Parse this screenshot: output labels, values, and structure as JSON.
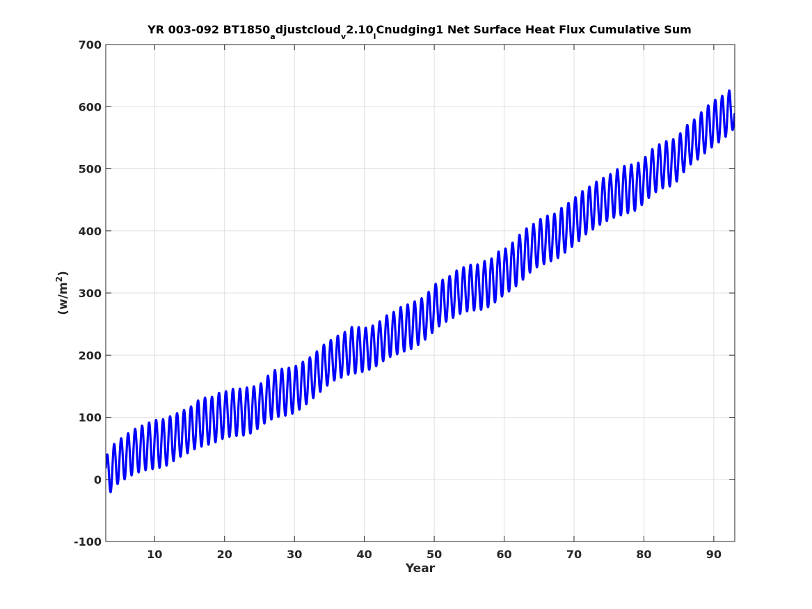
{
  "chart_data": {
    "type": "line",
    "title": {
      "prefix": "YR 003-092 BT1850",
      "sub1": "a",
      "mid1": "djustcloud",
      "sub2": "v",
      "mid2": "2.10",
      "sub3": "l",
      "suffix": "Cnudging1 Net Surface Heat Flux  Cumulative Sum"
    },
    "xlabel": "Year",
    "ylabel": {
      "text": "(w/m",
      "sup": "2",
      "close": ")"
    },
    "xlim": [
      3,
      93
    ],
    "ylim": [
      -100,
      700
    ],
    "xticks": [
      10,
      20,
      30,
      40,
      50,
      60,
      70,
      80,
      90
    ],
    "yticks": [
      -100,
      0,
      100,
      200,
      300,
      400,
      500,
      600,
      700
    ],
    "xtick_labels": [
      "10",
      "20",
      "30",
      "40",
      "50",
      "60",
      "70",
      "80",
      "90"
    ],
    "ytick_labels": [
      "-100",
      "0",
      "100",
      "200",
      "300",
      "400",
      "500",
      "600",
      "700"
    ],
    "grid": true,
    "line_color": "#0000ff",
    "series": [
      {
        "x_start": 3.0,
        "x_step": 0.08333,
        "cycle_period_years": 1.0,
        "envelope_max": [
          [
            3.2,
            40
          ],
          [
            4.2,
            57
          ],
          [
            5.3,
            67
          ],
          [
            6.3,
            75
          ],
          [
            7.3,
            82
          ],
          [
            8.3,
            87
          ],
          [
            9.3,
            92
          ],
          [
            10.3,
            96
          ],
          [
            11.3,
            97
          ],
          [
            12.3,
            102
          ],
          [
            13.3,
            107
          ],
          [
            14.3,
            112
          ],
          [
            15.3,
            118
          ],
          [
            16.3,
            128
          ],
          [
            17.3,
            132
          ],
          [
            18.3,
            133
          ],
          [
            19.3,
            140
          ],
          [
            20.3,
            142
          ],
          [
            21.3,
            146
          ],
          [
            22.3,
            146
          ],
          [
            23.3,
            148
          ],
          [
            24.3,
            150
          ],
          [
            25.3,
            155
          ],
          [
            26.3,
            168
          ],
          [
            27.3,
            177
          ],
          [
            28.3,
            178
          ],
          [
            29.3,
            180
          ],
          [
            30.3,
            183
          ],
          [
            31.3,
            190
          ],
          [
            32.3,
            197
          ],
          [
            33.3,
            207
          ],
          [
            34.3,
            218
          ],
          [
            35.3,
            225
          ],
          [
            36.3,
            232
          ],
          [
            37.3,
            238
          ],
          [
            38.3,
            246
          ],
          [
            39.3,
            245
          ],
          [
            40.3,
            244
          ],
          [
            41.3,
            248
          ],
          [
            42.3,
            255
          ],
          [
            43.3,
            265
          ],
          [
            44.3,
            270
          ],
          [
            45.3,
            278
          ],
          [
            46.3,
            282
          ],
          [
            47.3,
            287
          ],
          [
            48.3,
            292
          ],
          [
            49.3,
            303
          ],
          [
            50.3,
            316
          ],
          [
            51.3,
            322
          ],
          [
            52.3,
            328
          ],
          [
            53.3,
            337
          ],
          [
            54.3,
            342
          ],
          [
            55.3,
            346
          ],
          [
            56.3,
            346
          ],
          [
            57.3,
            352
          ],
          [
            58.3,
            356
          ],
          [
            59.3,
            368
          ],
          [
            60.3,
            372
          ],
          [
            61.3,
            382
          ],
          [
            62.3,
            395
          ],
          [
            63.3,
            405
          ],
          [
            64.3,
            412
          ],
          [
            65.3,
            420
          ],
          [
            66.3,
            425
          ],
          [
            67.3,
            428
          ],
          [
            68.3,
            438
          ],
          [
            69.3,
            446
          ],
          [
            70.3,
            455
          ],
          [
            71.3,
            465
          ],
          [
            72.3,
            472
          ],
          [
            73.3,
            480
          ],
          [
            74.3,
            486
          ],
          [
            75.3,
            492
          ],
          [
            76.3,
            500
          ],
          [
            77.3,
            505
          ],
          [
            78.3,
            507
          ],
          [
            79.3,
            510
          ],
          [
            80.3,
            520
          ],
          [
            81.3,
            533
          ],
          [
            82.3,
            540
          ],
          [
            83.3,
            545
          ],
          [
            84.3,
            548
          ],
          [
            85.3,
            558
          ],
          [
            86.3,
            572
          ],
          [
            87.3,
            580
          ],
          [
            88.3,
            592
          ],
          [
            89.3,
            603
          ],
          [
            90.3,
            612
          ],
          [
            91.3,
            618
          ],
          [
            92.3,
            627
          ],
          [
            93.0,
            603
          ]
        ],
        "envelope_min": [
          [
            3.4,
            -25
          ],
          [
            4.4,
            -10
          ],
          [
            5.4,
            -2
          ],
          [
            6.4,
            5
          ],
          [
            7.4,
            10
          ],
          [
            8.4,
            14
          ],
          [
            9.4,
            16
          ],
          [
            10.4,
            18
          ],
          [
            11.4,
            20
          ],
          [
            12.4,
            27
          ],
          [
            13.4,
            35
          ],
          [
            14.4,
            40
          ],
          [
            15.4,
            47
          ],
          [
            16.4,
            52
          ],
          [
            17.4,
            55
          ],
          [
            18.4,
            58
          ],
          [
            19.4,
            64
          ],
          [
            20.4,
            68
          ],
          [
            21.4,
            70
          ],
          [
            22.4,
            70
          ],
          [
            23.4,
            72
          ],
          [
            24.4,
            78
          ],
          [
            25.4,
            88
          ],
          [
            26.4,
            95
          ],
          [
            27.4,
            100
          ],
          [
            28.4,
            102
          ],
          [
            29.4,
            104
          ],
          [
            30.4,
            110
          ],
          [
            31.4,
            118
          ],
          [
            32.4,
            128
          ],
          [
            33.4,
            138
          ],
          [
            34.4,
            148
          ],
          [
            35.4,
            158
          ],
          [
            36.4,
            162
          ],
          [
            37.4,
            168
          ],
          [
            38.4,
            170
          ],
          [
            39.4,
            172
          ],
          [
            40.4,
            175
          ],
          [
            41.4,
            180
          ],
          [
            42.4,
            188
          ],
          [
            43.4,
            196
          ],
          [
            44.4,
            200
          ],
          [
            45.4,
            205
          ],
          [
            46.4,
            208
          ],
          [
            47.4,
            214
          ],
          [
            48.4,
            222
          ],
          [
            49.4,
            232
          ],
          [
            50.4,
            244
          ],
          [
            51.4,
            252
          ],
          [
            52.4,
            258
          ],
          [
            53.4,
            265
          ],
          [
            54.4,
            270
          ],
          [
            55.4,
            272
          ],
          [
            56.4,
            272
          ],
          [
            57.4,
            275
          ],
          [
            58.4,
            282
          ],
          [
            59.4,
            292
          ],
          [
            60.4,
            300
          ],
          [
            61.4,
            308
          ],
          [
            62.4,
            318
          ],
          [
            63.4,
            330
          ],
          [
            64.4,
            340
          ],
          [
            65.4,
            345
          ],
          [
            66.4,
            350
          ],
          [
            67.4,
            354
          ],
          [
            68.4,
            362
          ],
          [
            69.4,
            372
          ],
          [
            70.4,
            380
          ],
          [
            71.4,
            392
          ],
          [
            72.4,
            400
          ],
          [
            73.4,
            408
          ],
          [
            74.4,
            414
          ],
          [
            75.4,
            420
          ],
          [
            76.4,
            424
          ],
          [
            77.4,
            428
          ],
          [
            78.4,
            430
          ],
          [
            79.4,
            438
          ],
          [
            80.4,
            450
          ],
          [
            81.4,
            460
          ],
          [
            82.4,
            468
          ],
          [
            83.4,
            470
          ],
          [
            84.4,
            475
          ],
          [
            85.4,
            490
          ],
          [
            86.4,
            505
          ],
          [
            87.4,
            512
          ],
          [
            88.4,
            522
          ],
          [
            89.4,
            532
          ],
          [
            90.4,
            540
          ],
          [
            91.4,
            548
          ],
          [
            92.4,
            560
          ],
          [
            93.0,
            565
          ]
        ]
      }
    ]
  }
}
